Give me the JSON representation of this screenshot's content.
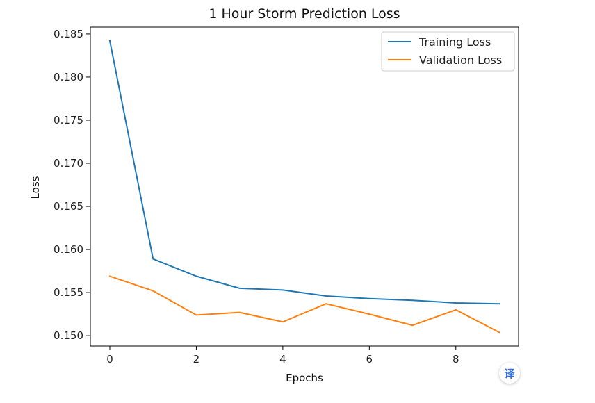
{
  "chart_data": {
    "type": "line",
    "title": "1 Hour Storm Prediction Loss",
    "xlabel": "Epochs",
    "ylabel": "Loss",
    "x": [
      0,
      1,
      2,
      3,
      4,
      5,
      6,
      7,
      8,
      9
    ],
    "xlim": [
      -0.45,
      9.45
    ],
    "ylim": [
      0.1488,
      0.1858
    ],
    "xticks": [
      0,
      2,
      4,
      6,
      8
    ],
    "xtick_labels": [
      "0",
      "2",
      "4",
      "6",
      "8"
    ],
    "yticks": [
      0.15,
      0.155,
      0.16,
      0.165,
      0.17,
      0.175,
      0.18,
      0.185
    ],
    "ytick_labels": [
      "0.150",
      "0.155",
      "0.160",
      "0.165",
      "0.170",
      "0.175",
      "0.180",
      "0.185"
    ],
    "grid": false,
    "legend_position": "top-right",
    "series": [
      {
        "name": "Training Loss",
        "color": "#1f77b4",
        "values": [
          0.1842,
          0.1589,
          0.1569,
          0.1555,
          0.1553,
          0.1546,
          0.1543,
          0.1541,
          0.1538,
          0.1537
        ]
      },
      {
        "name": "Validation Loss",
        "color": "#ff7f0e",
        "values": [
          0.1569,
          0.1552,
          0.1524,
          0.1527,
          0.1516,
          0.1537,
          0.1525,
          0.1512,
          0.153,
          0.1504
        ]
      }
    ]
  },
  "overlay": {
    "translate_label": "译"
  }
}
